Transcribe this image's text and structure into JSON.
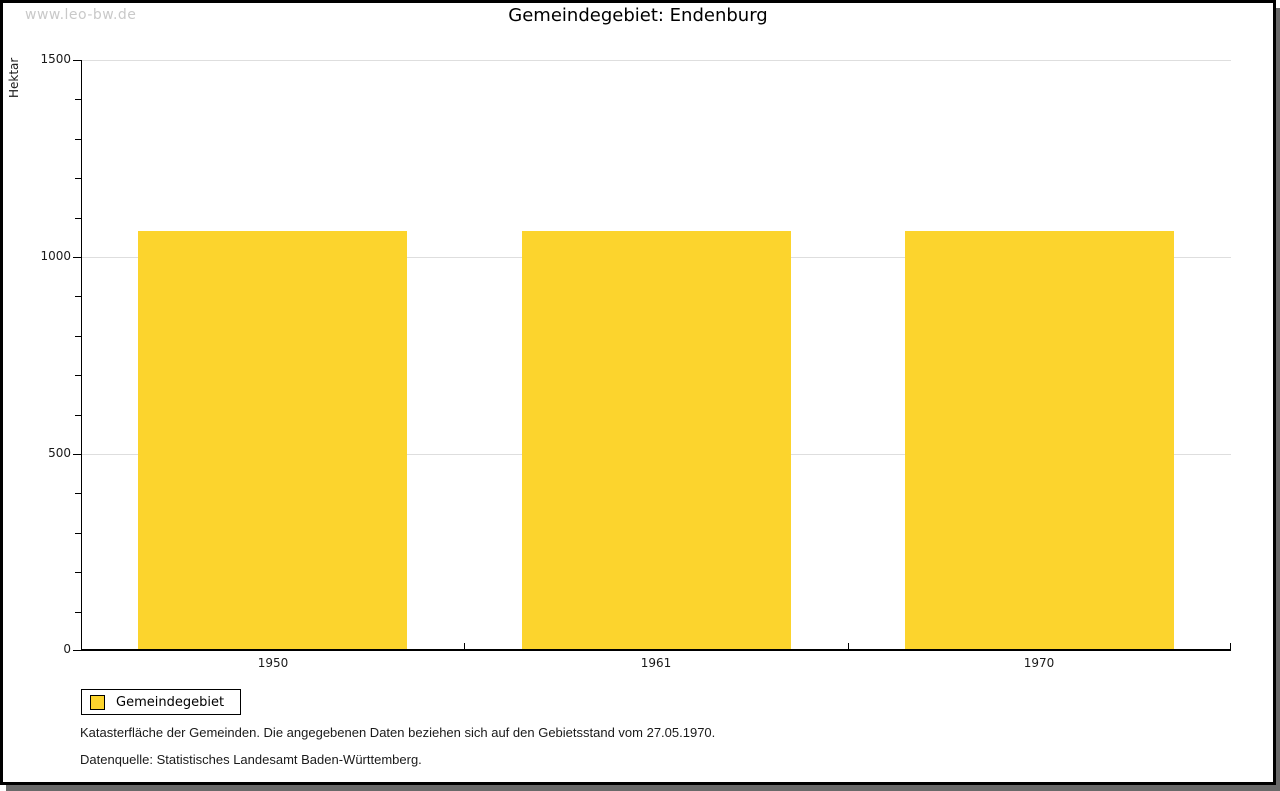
{
  "watermark": "www.leo-bw.de",
  "title": "Gemeindegebiet: Endenburg",
  "chart_data": {
    "type": "bar",
    "title": "Gemeindegebiet: Endenburg",
    "categories": [
      "1950",
      "1961",
      "1970"
    ],
    "series": [
      {
        "name": "Gemeindegebiet",
        "values": [
          1066,
          1066,
          1066
        ]
      }
    ],
    "xlabel": "",
    "ylabel": "Hektar",
    "ylim": [
      0,
      1500
    ],
    "y_major_ticks": [
      0,
      500,
      1000,
      1500
    ],
    "y_minor_step": 100,
    "grid": "horizontal-major",
    "bar_color": "#fcd42d",
    "gridline_color": "#dedede",
    "legend_position": "bottom-left"
  },
  "legend": {
    "items": [
      {
        "label": "Gemeindegebiet",
        "color": "#fcd42d"
      }
    ]
  },
  "footer": {
    "line1": "Katasterfläche der Gemeinden. Die angegebenen Daten beziehen sich auf den Gebietsstand vom 27.05.1970.",
    "line2": "Datenquelle: Statistisches Landesamt Baden-Württemberg."
  }
}
